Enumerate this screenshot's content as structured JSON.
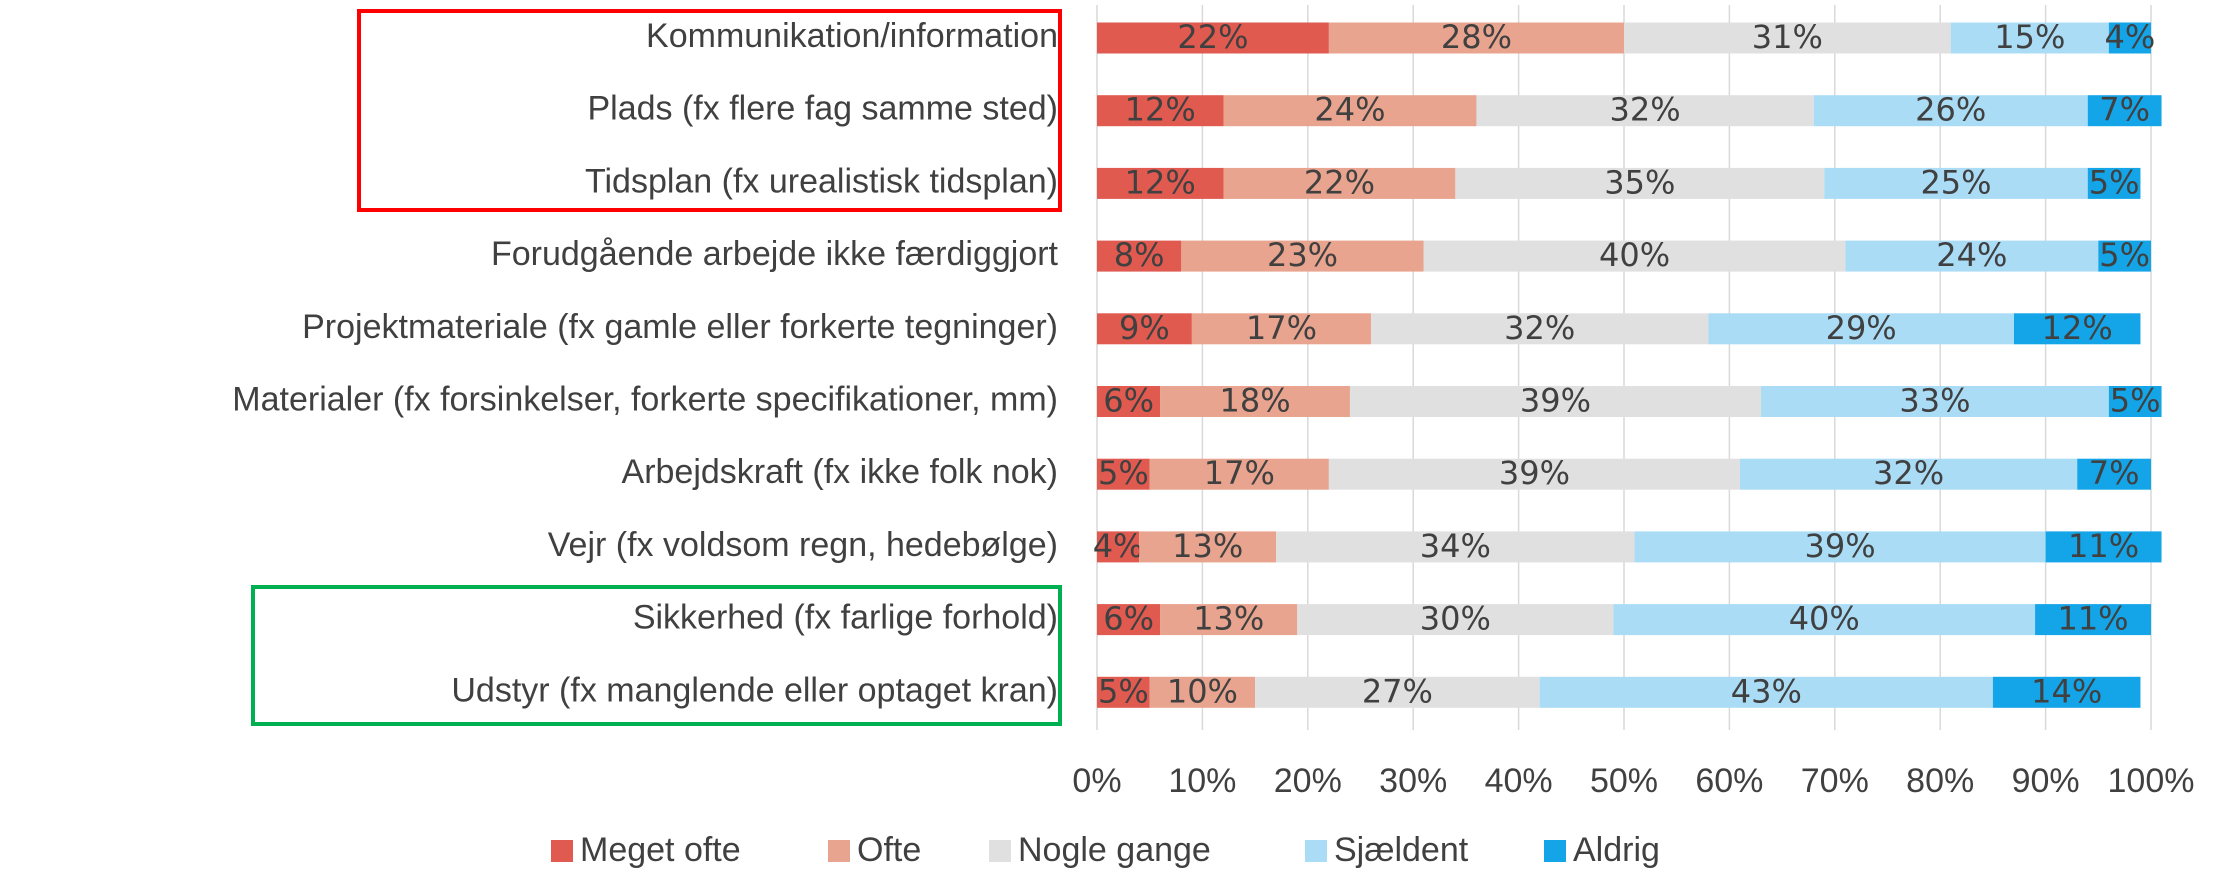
{
  "chart_data": {
    "type": "stacked_barh",
    "categories": [
      "Kommunikation/information",
      "Plads (fx flere fag samme sted)",
      "Tidsplan (fx urealistisk tidsplan)",
      "Forudgående arbejde ikke færdiggjort",
      "Projektmateriale (fx gamle eller forkerte tegninger)",
      "Materialer (fx forsinkelser, forkerte specifikationer, mm)",
      "Arbejdskraft (fx ikke folk nok)",
      "Vejr (fx voldsom regn, hedebølge)",
      "Sikkerhed (fx farlige forhold)",
      "Udstyr (fx manglende eller optaget kran)"
    ],
    "series": [
      {
        "name": "Meget ofte",
        "color": "#e05a50",
        "values": [
          22,
          12,
          12,
          8,
          9,
          6,
          5,
          4,
          6,
          5
        ],
        "value_labels": [
          "22%",
          "12%",
          "12%",
          "8%",
          "9%",
          "6%",
          "5%",
          "4%",
          "6%",
          "5%"
        ]
      },
      {
        "name": "Ofte",
        "color": "#e8a48e",
        "values": [
          28,
          24,
          22,
          23,
          17,
          18,
          17,
          13,
          13,
          10
        ],
        "value_labels": [
          "28%",
          "24%",
          "22%",
          "23%",
          "17%",
          "18%",
          "17%",
          "13%",
          "13%",
          "10%"
        ]
      },
      {
        "name": "Nogle gange",
        "color": "#e0e0e0",
        "values": [
          31,
          32,
          35,
          40,
          32,
          39,
          39,
          34,
          30,
          27
        ],
        "value_labels": [
          "31%",
          "32%",
          "35%",
          "40%",
          "32%",
          "39%",
          "39%",
          "34%",
          "30%",
          "27%"
        ]
      },
      {
        "name": "Sjældent",
        "color": "#aadcf6",
        "values": [
          15,
          26,
          25,
          24,
          29,
          33,
          32,
          39,
          40,
          43
        ],
        "value_labels": [
          "15%",
          "26%",
          "25%",
          "24%",
          "29%",
          "33%",
          "32%",
          "39%",
          "40%",
          "43%"
        ]
      },
      {
        "name": "Aldrig",
        "color": "#14a5e8",
        "values": [
          4,
          7,
          5,
          5,
          12,
          5,
          7,
          11,
          11,
          14
        ],
        "value_labels": [
          "4%",
          "7%",
          "5%",
          "5%",
          "12%",
          "5%",
          "7%",
          "11%",
          "11%",
          "14%"
        ]
      }
    ],
    "xlim": [
      0,
      100
    ],
    "xticks": [
      {
        "value": 0,
        "label": "0%"
      },
      {
        "value": 10,
        "label": "10%"
      },
      {
        "value": 20,
        "label": "20%"
      },
      {
        "value": 30,
        "label": "30%"
      },
      {
        "value": 40,
        "label": "40%"
      },
      {
        "value": 50,
        "label": "50%"
      },
      {
        "value": 60,
        "label": "60%"
      },
      {
        "value": 70,
        "label": "70%"
      },
      {
        "value": 80,
        "label": "80%"
      },
      {
        "value": 90,
        "label": "90%"
      },
      {
        "value": 100,
        "label": "100%"
      }
    ],
    "grid": true,
    "legend": "bottom"
  }
}
